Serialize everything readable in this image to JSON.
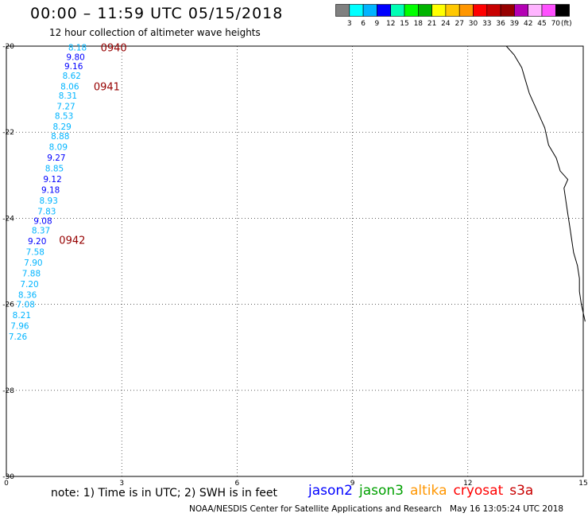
{
  "header": {
    "title": "00:00 – 11:59 UTC 05/15/2018",
    "subtitle": "12 hour collection of altimeter wave heights"
  },
  "colorbar": {
    "unit": "(ft)",
    "swatches": [
      "#808080",
      "#00ffff",
      "#00b4ff",
      "#0000ff",
      "#00ffb4",
      "#00ff00",
      "#00b400",
      "#ffff00",
      "#ffc800",
      "#ff9600",
      "#ff0000",
      "#c80000",
      "#960000",
      "#b400b4",
      "#ffb4ff",
      "#ff50ff",
      "#000000"
    ],
    "labels": [
      "3",
      "6",
      "9",
      "12",
      "15",
      "18",
      "21",
      "24",
      "27",
      "30",
      "33",
      "36",
      "39",
      "42",
      "45",
      "70"
    ]
  },
  "map": {
    "x_axis": {
      "range": [
        0,
        15
      ],
      "ticks": [
        "0",
        "3",
        "6",
        "9",
        "12",
        "15"
      ]
    },
    "y_axis": {
      "range": [
        -20,
        -30
      ],
      "ticks": [
        "-20",
        "-22",
        "-24",
        "-26",
        "-28",
        "-30"
      ]
    },
    "grid": true,
    "coastline": [
      [
        13.0,
        -20.0
      ],
      [
        13.2,
        -20.2
      ],
      [
        13.4,
        -20.5
      ],
      [
        13.5,
        -20.8
      ],
      [
        13.6,
        -21.1
      ],
      [
        13.8,
        -21.5
      ],
      [
        14.0,
        -21.9
      ],
      [
        14.1,
        -22.3
      ],
      [
        14.3,
        -22.6
      ],
      [
        14.4,
        -22.9
      ],
      [
        14.6,
        -23.1
      ],
      [
        14.5,
        -23.3
      ],
      [
        14.55,
        -23.6
      ],
      [
        14.6,
        -23.9
      ],
      [
        14.65,
        -24.2
      ],
      [
        14.7,
        -24.5
      ],
      [
        14.75,
        -24.8
      ],
      [
        14.85,
        -25.1
      ],
      [
        14.9,
        -25.4
      ],
      [
        14.9,
        -25.7
      ],
      [
        14.95,
        -26.0
      ],
      [
        15.0,
        -26.2
      ],
      [
        15.05,
        -26.4
      ]
    ],
    "track_labels": [
      {
        "time": "0940",
        "lon": 2.45,
        "lat": -20.03,
        "color": "#960000"
      },
      {
        "time": "0941",
        "lon": 2.27,
        "lat": -20.93,
        "color": "#960000"
      },
      {
        "time": "0942",
        "lon": 1.37,
        "lat": -24.5,
        "color": "#960000"
      }
    ],
    "swh_points": [
      {
        "swh": "8.18",
        "lon": 1.85,
        "lat": -20.03,
        "color": "#00b4ff"
      },
      {
        "swh": "9.80",
        "lon": 1.8,
        "lat": -20.25,
        "color": "#0000ff"
      },
      {
        "swh": "9.16",
        "lon": 1.75,
        "lat": -20.46,
        "color": "#0000ff"
      },
      {
        "swh": "8.62",
        "lon": 1.7,
        "lat": -20.68,
        "color": "#00b4ff"
      },
      {
        "swh": "8.06",
        "lon": 1.65,
        "lat": -20.93,
        "color": "#00b4ff"
      },
      {
        "swh": "8.31",
        "lon": 1.6,
        "lat": -21.15,
        "color": "#00b4ff"
      },
      {
        "swh": "7.27",
        "lon": 1.55,
        "lat": -21.4,
        "color": "#00b4ff"
      },
      {
        "swh": "8.53",
        "lon": 1.5,
        "lat": -21.62,
        "color": "#00b4ff"
      },
      {
        "swh": "8.29",
        "lon": 1.45,
        "lat": -21.87,
        "color": "#00b4ff"
      },
      {
        "swh": "8.88",
        "lon": 1.4,
        "lat": -22.09,
        "color": "#00b4ff"
      },
      {
        "swh": "8.09",
        "lon": 1.35,
        "lat": -22.34,
        "color": "#00b4ff"
      },
      {
        "swh": "9.27",
        "lon": 1.3,
        "lat": -22.59,
        "color": "#0000ff"
      },
      {
        "swh": "8.85",
        "lon": 1.25,
        "lat": -22.84,
        "color": "#00b4ff"
      },
      {
        "swh": "9.12",
        "lon": 1.2,
        "lat": -23.09,
        "color": "#0000ff"
      },
      {
        "swh": "9.18",
        "lon": 1.15,
        "lat": -23.34,
        "color": "#0000ff"
      },
      {
        "swh": "8.93",
        "lon": 1.1,
        "lat": -23.59,
        "color": "#00b4ff"
      },
      {
        "swh": "7.83",
        "lon": 1.05,
        "lat": -23.84,
        "color": "#00b4ff"
      },
      {
        "swh": "9.08",
        "lon": 0.95,
        "lat": -24.06,
        "color": "#0000ff"
      },
      {
        "swh": "8.37",
        "lon": 0.9,
        "lat": -24.28,
        "color": "#00b4ff"
      },
      {
        "swh": "9.20",
        "lon": 0.8,
        "lat": -24.53,
        "color": "#0000ff"
      },
      {
        "swh": "7.58",
        "lon": 0.75,
        "lat": -24.78,
        "color": "#00b4ff"
      },
      {
        "swh": "7.90",
        "lon": 0.7,
        "lat": -25.03,
        "color": "#00b4ff"
      },
      {
        "swh": "7.88",
        "lon": 0.65,
        "lat": -25.28,
        "color": "#00b4ff"
      },
      {
        "swh": "7.20",
        "lon": 0.6,
        "lat": -25.53,
        "color": "#00b4ff"
      },
      {
        "swh": "8.36",
        "lon": 0.55,
        "lat": -25.78,
        "color": "#00b4ff"
      },
      {
        "swh": "7.08",
        "lon": 0.5,
        "lat": -26.0,
        "color": "#00b4ff"
      },
      {
        "swh": "8.21",
        "lon": 0.4,
        "lat": -26.25,
        "color": "#00b4ff"
      },
      {
        "swh": "7.96",
        "lon": 0.35,
        "lat": -26.5,
        "color": "#00b4ff"
      },
      {
        "swh": "7.26",
        "lon": 0.3,
        "lat": -26.75,
        "color": "#00b4ff"
      }
    ]
  },
  "footer": {
    "note": "note: 1) Time is in UTC; 2) SWH is in feet",
    "satellites": [
      {
        "name": "jason2",
        "color": "#0000ff"
      },
      {
        "name": "jason3",
        "color": "#00a000"
      },
      {
        "name": "altika",
        "color": "#ff9600"
      },
      {
        "name": "cryosat",
        "color": "#ff0000"
      },
      {
        "name": "s3a",
        "color": "#c80000"
      }
    ],
    "credit": "NOAA/NESDIS Center for Satellite Applications and Research",
    "generated": "May 16 13:05:24 UTC 2018"
  }
}
